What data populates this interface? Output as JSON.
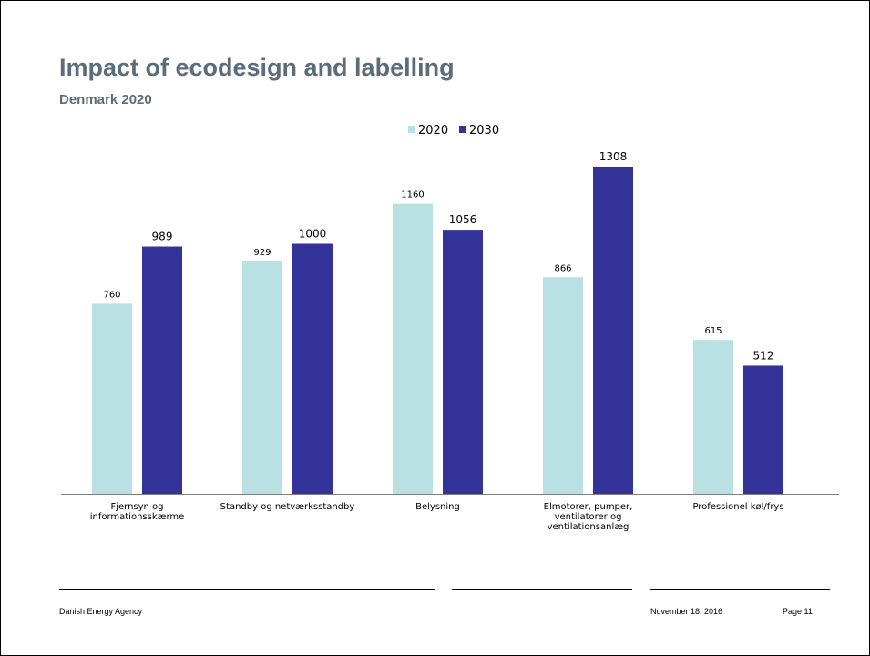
{
  "slide": {
    "title": "Impact of ecodesign and labelling",
    "subtitle": "Denmark 2020"
  },
  "footer": {
    "organization": "Danish Energy Agency",
    "date": "November 18, 2016",
    "page": "Page 11"
  },
  "chart_data": {
    "type": "bar",
    "categories": [
      [
        "Fjernsyn og",
        "informationsskærme"
      ],
      [
        "Standby og netværksstandby"
      ],
      [
        "Belysning"
      ],
      [
        "Elmotorer, pumper,",
        "ventilatorer og",
        "ventilationsanlæg"
      ],
      [
        "Professionel køl/frys"
      ]
    ],
    "series": [
      {
        "name": "2020",
        "color": "#b9e1e3",
        "values": [
          760,
          929,
          1160,
          866,
          615
        ]
      },
      {
        "name": "2030",
        "color": "#343399",
        "values": [
          989,
          1000,
          1056,
          1308,
          512
        ]
      }
    ],
    "data_labels": true,
    "legend_position": "top-center",
    "grid": false,
    "ylim": [
      0,
      1400
    ]
  }
}
